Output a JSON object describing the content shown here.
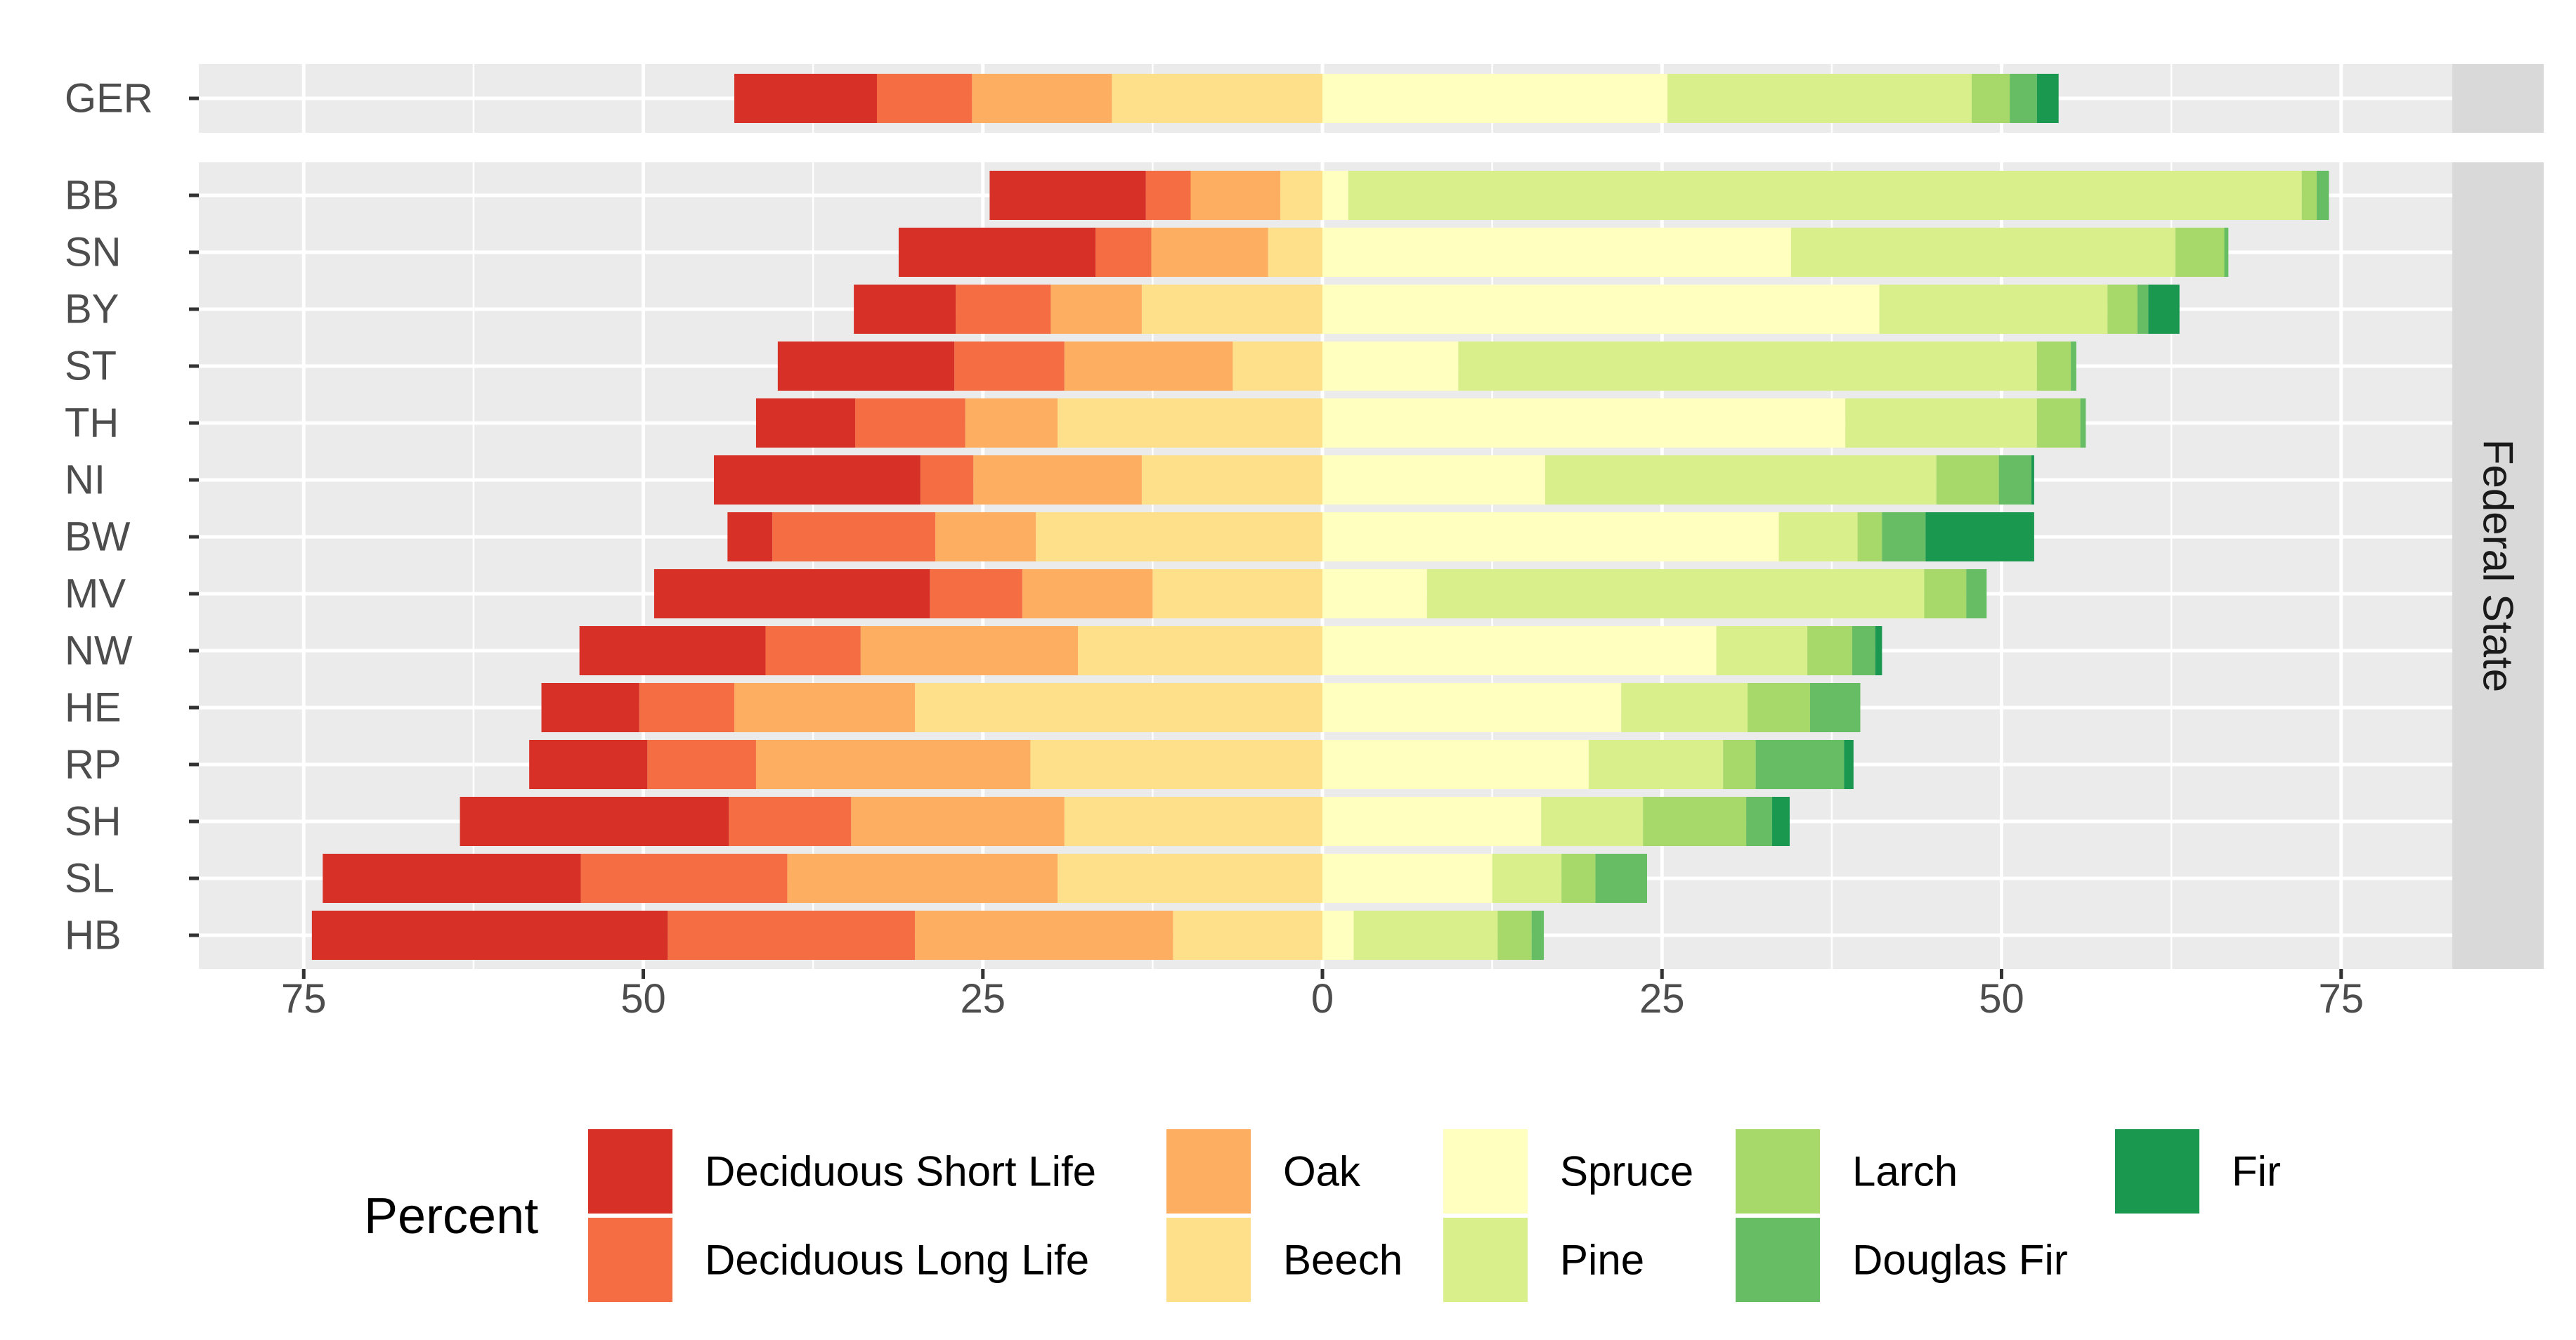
{
  "chart_data": {
    "type": "bar",
    "orientation": "horizontal",
    "stacking": "diverging",
    "xlim": [
      -83,
      89
    ],
    "x_ticks": [
      -75,
      -50,
      -25,
      0,
      25,
      50,
      75
    ],
    "x_tick_labels": [
      "75",
      "50",
      "25",
      "0",
      "25",
      "50",
      "75"
    ],
    "grid": true,
    "legend_title": "Percent",
    "legend_position": "bottom",
    "facet_strip_label": "Federal State",
    "panels": [
      {
        "name": "germany",
        "categories": [
          "GER"
        ]
      },
      {
        "name": "federal-state",
        "categories": [
          "BB",
          "SN",
          "BY",
          "ST",
          "TH",
          "NI",
          "BW",
          "MV",
          "NW",
          "HE",
          "RP",
          "SH",
          "SL",
          "HB"
        ]
      }
    ],
    "left_series_order_from_center": [
      "Beech",
      "Oak",
      "Deciduous Long Life",
      "Deciduous Short Life"
    ],
    "right_series_order_from_center": [
      "Spruce",
      "Pine",
      "Larch",
      "Douglas Fir",
      "Fir"
    ],
    "legend": [
      {
        "label": "Deciduous Short Life",
        "color": "#D73027"
      },
      {
        "label": "Deciduous Long Life",
        "color": "#F46D43"
      },
      {
        "label": "Oak",
        "color": "#FDAE61"
      },
      {
        "label": "Beech",
        "color": "#FEE08B"
      },
      {
        "label": "Spruce",
        "color": "#FFFFBF"
      },
      {
        "label": "Pine",
        "color": "#D9EF8B"
      },
      {
        "label": "Larch",
        "color": "#A6D96A"
      },
      {
        "label": "Douglas Fir",
        "color": "#66BD63"
      },
      {
        "label": "Fir",
        "color": "#1A9850"
      }
    ],
    "series": [
      {
        "name": "Deciduous Short Life",
        "values": {
          "GER": 10.5,
          "BB": 11.5,
          "SN": 14.5,
          "BY": 7.5,
          "ST": 13.0,
          "TH": 7.3,
          "NI": 15.2,
          "BW": 3.3,
          "MV": 20.3,
          "NW": 13.7,
          "HE": 7.2,
          "RP": 8.7,
          "SH": 19.8,
          "SL": 19.0,
          "HB": 26.2
        }
      },
      {
        "name": "Deciduous Long Life",
        "values": {
          "GER": 7.0,
          "BB": 3.3,
          "SN": 4.1,
          "BY": 7.0,
          "ST": 8.1,
          "TH": 8.1,
          "NI": 3.9,
          "BW": 12.0,
          "MV": 6.8,
          "NW": 7.0,
          "HE": 7.0,
          "RP": 8.0,
          "SH": 9.0,
          "SL": 15.2,
          "HB": 18.2
        }
      },
      {
        "name": "Oak",
        "values": {
          "GER": 10.3,
          "BB": 6.6,
          "SN": 8.6,
          "BY": 6.7,
          "ST": 12.4,
          "TH": 6.8,
          "NI": 12.4,
          "BW": 7.4,
          "MV": 9.6,
          "NW": 16.0,
          "HE": 13.3,
          "RP": 20.2,
          "SH": 15.7,
          "SL": 19.9,
          "HB": 19.0
        }
      },
      {
        "name": "Beech",
        "values": {
          "GER": 15.5,
          "BB": 3.1,
          "SN": 4.0,
          "BY": 13.3,
          "ST": 6.6,
          "TH": 19.5,
          "NI": 13.3,
          "BW": 21.1,
          "MV": 12.5,
          "NW": 18.0,
          "HE": 30.0,
          "RP": 21.5,
          "SH": 19.0,
          "SL": 19.5,
          "HB": 11.0
        }
      },
      {
        "name": "Spruce",
        "values": {
          "GER": 25.4,
          "BB": 1.9,
          "SN": 34.5,
          "BY": 41.0,
          "ST": 10.0,
          "TH": 38.5,
          "NI": 16.4,
          "BW": 33.6,
          "MV": 7.7,
          "NW": 29.0,
          "HE": 22.0,
          "RP": 19.6,
          "SH": 16.1,
          "SL": 12.5,
          "HB": 2.3
        }
      },
      {
        "name": "Pine",
        "values": {
          "GER": 22.4,
          "BB": 70.2,
          "SN": 28.3,
          "BY": 16.8,
          "ST": 42.6,
          "TH": 14.1,
          "NI": 28.8,
          "BW": 5.8,
          "MV": 36.6,
          "NW": 6.7,
          "HE": 9.3,
          "RP": 9.9,
          "SH": 7.5,
          "SL": 5.1,
          "HB": 10.6
        }
      },
      {
        "name": "Larch",
        "values": {
          "GER": 2.8,
          "BB": 1.1,
          "SN": 3.6,
          "BY": 2.2,
          "ST": 2.5,
          "TH": 3.2,
          "NI": 4.6,
          "BW": 1.8,
          "MV": 3.1,
          "NW": 3.3,
          "HE": 4.6,
          "RP": 2.4,
          "SH": 7.6,
          "SL": 2.5,
          "HB": 2.5
        }
      },
      {
        "name": "Douglas Fir",
        "values": {
          "GER": 2.0,
          "BB": 0.9,
          "SN": 0.3,
          "BY": 0.8,
          "ST": 0.4,
          "TH": 0.4,
          "NI": 2.4,
          "BW": 3.2,
          "MV": 1.5,
          "NW": 1.7,
          "HE": 3.7,
          "RP": 6.5,
          "SH": 1.9,
          "SL": 3.8,
          "HB": 0.9
        }
      },
      {
        "name": "Fir",
        "values": {
          "GER": 1.6,
          "BB": 0,
          "SN": 0,
          "BY": 2.3,
          "ST": 0,
          "TH": 0,
          "NI": 0.2,
          "BW": 8.0,
          "MV": 0,
          "NW": 0.5,
          "HE": 0,
          "RP": 0.7,
          "SH": 1.3,
          "SL": 0,
          "HB": 0
        }
      }
    ]
  }
}
